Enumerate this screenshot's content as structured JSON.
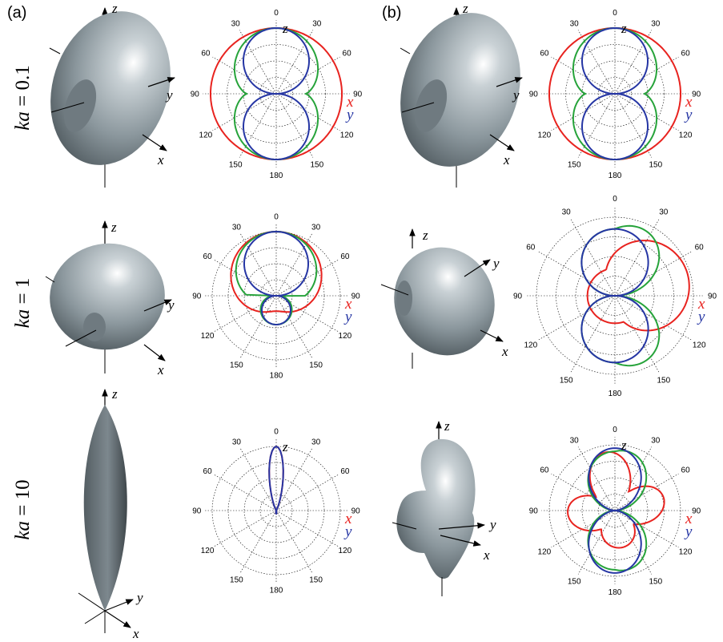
{
  "panels": {
    "a": "(a)",
    "b": "(b)"
  },
  "row_labels": [
    {
      "var": "ka",
      "eq": " = 0.1"
    },
    {
      "var": "ka",
      "eq": " = 1"
    },
    {
      "var": "ka",
      "eq": " = 10"
    }
  ],
  "axis_letters": {
    "x": "x",
    "y": "y",
    "z": "z"
  },
  "angle_ticks": [
    {
      "deg": 0,
      "label": "0"
    },
    {
      "deg": 30,
      "label": "30"
    },
    {
      "deg": 60,
      "label": "60"
    },
    {
      "deg": 90,
      "label": "90"
    },
    {
      "deg": 120,
      "label": "120"
    },
    {
      "deg": 150,
      "label": "150"
    },
    {
      "deg": 180,
      "label": "180"
    },
    {
      "deg": 210,
      "label": "150"
    },
    {
      "deg": 240,
      "label": "120"
    },
    {
      "deg": 270,
      "label": "90"
    },
    {
      "deg": 300,
      "label": "60"
    },
    {
      "deg": 330,
      "label": "30"
    }
  ],
  "legend": [
    {
      "label": "x",
      "color": "#e8231f"
    },
    {
      "label": "y",
      "color": "#2636a4"
    }
  ],
  "colors": {
    "x_curve": "#e8231f",
    "y_curve": "#2636a4",
    "mid_curve": "#26a33a",
    "body": "#9ba7ad"
  },
  "icons": [
    "torus-body",
    "spindle-body",
    "lobed-body"
  ]
}
